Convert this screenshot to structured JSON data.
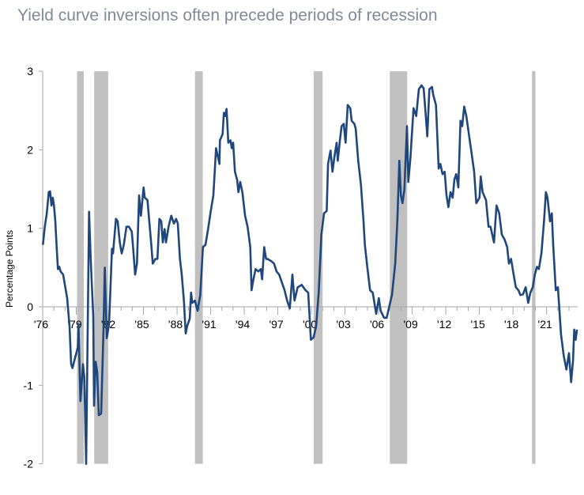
{
  "chart_data": {
    "type": "line",
    "title": "Yield curve inversions often precede periods of recession",
    "xlabel": "",
    "ylabel": "Percentage Points",
    "xlim": [
      1976,
      2023.8
    ],
    "ylim": [
      -2,
      3
    ],
    "y_ticks": [
      -2,
      -1,
      0,
      1,
      2,
      3
    ],
    "x_ticks": [
      {
        "year": 1976,
        "label": "'76"
      },
      {
        "year": 1979,
        "label": "'79"
      },
      {
        "year": 1982,
        "label": "'82"
      },
      {
        "year": 1985,
        "label": "'85"
      },
      {
        "year": 1988,
        "label": "'88"
      },
      {
        "year": 1991,
        "label": "'91"
      },
      {
        "year": 1994,
        "label": "'94"
      },
      {
        "year": 1997,
        "label": "'97"
      },
      {
        "year": 2000,
        "label": "'00"
      },
      {
        "year": 2003,
        "label": "'03"
      },
      {
        "year": 2006,
        "label": "'06"
      },
      {
        "year": 2009,
        "label": "'09"
      },
      {
        "year": 2012,
        "label": "'12"
      },
      {
        "year": 2015,
        "label": "'15"
      },
      {
        "year": 2018,
        "label": "'18"
      },
      {
        "year": 2021,
        "label": "'21"
      }
    ],
    "grid": false,
    "line_color": "#1f477d",
    "recession_color": "#c0c0c0",
    "axis_color": "#a6a6a6",
    "recessions": [
      [
        1979.07,
        1979.67
      ],
      [
        1980.6,
        1981.85
      ],
      [
        1989.6,
        1990.3
      ],
      [
        2000.2,
        2001.0
      ],
      [
        2007.0,
        2008.55
      ],
      [
        2019.7,
        2020.0
      ]
    ],
    "series": [
      {
        "points": [
          [
            1976.02,
            0.79
          ],
          [
            1976.19,
            1.02
          ],
          [
            1976.37,
            1.19
          ],
          [
            1976.54,
            1.46
          ],
          [
            1976.66,
            1.47
          ],
          [
            1976.78,
            1.29
          ],
          [
            1976.9,
            1.39
          ],
          [
            1977.01,
            1.29
          ],
          [
            1977.13,
            1.09
          ],
          [
            1977.25,
            0.76
          ],
          [
            1977.36,
            0.48
          ],
          [
            1977.48,
            0.51
          ],
          [
            1977.6,
            0.45
          ],
          [
            1977.83,
            0.41
          ],
          [
            1978.19,
            0.11
          ],
          [
            1978.4,
            -0.25
          ],
          [
            1978.54,
            -0.73
          ],
          [
            1978.66,
            -0.78
          ],
          [
            1978.89,
            -0.65
          ],
          [
            1979.13,
            -0.52
          ],
          [
            1979.2,
            -0.22
          ],
          [
            1979.37,
            -1.2
          ],
          [
            1979.6,
            -0.73
          ],
          [
            1979.72,
            -0.9
          ],
          [
            1979.88,
            -2.03
          ],
          [
            1980.14,
            1.21
          ],
          [
            1980.3,
            0.58
          ],
          [
            1980.52,
            -0.12
          ],
          [
            1980.59,
            -1.26
          ],
          [
            1980.73,
            -0.7
          ],
          [
            1980.87,
            -0.83
          ],
          [
            1981.01,
            -1.38
          ],
          [
            1981.22,
            -1.36
          ],
          [
            1981.43,
            -0.32
          ],
          [
            1981.55,
            0.5
          ],
          [
            1981.72,
            -0.4
          ],
          [
            1981.93,
            -0.22
          ],
          [
            1982.19,
            0.74
          ],
          [
            1982.28,
            0.68
          ],
          [
            1982.54,
            1.12
          ],
          [
            1982.7,
            1.09
          ],
          [
            1982.89,
            0.82
          ],
          [
            1983.06,
            0.68
          ],
          [
            1983.25,
            0.79
          ],
          [
            1983.48,
            1.02
          ],
          [
            1983.69,
            1.02
          ],
          [
            1983.95,
            0.96
          ],
          [
            1984.07,
            0.76
          ],
          [
            1984.26,
            0.41
          ],
          [
            1984.42,
            0.55
          ],
          [
            1984.61,
            1.42
          ],
          [
            1984.77,
            1.16
          ],
          [
            1985.01,
            1.52
          ],
          [
            1985.12,
            1.39
          ],
          [
            1985.36,
            1.36
          ],
          [
            1985.72,
            0.76
          ],
          [
            1985.83,
            0.55
          ],
          [
            1986.07,
            0.61
          ],
          [
            1986.25,
            0.61
          ],
          [
            1986.42,
            1.12
          ],
          [
            1986.59,
            1.09
          ],
          [
            1986.73,
            0.82
          ],
          [
            1986.89,
            0.99
          ],
          [
            1987.01,
            0.82
          ],
          [
            1987.24,
            1.02
          ],
          [
            1987.48,
            1.16
          ],
          [
            1987.72,
            1.06
          ],
          [
            1987.91,
            1.12
          ],
          [
            1988.07,
            1.06
          ],
          [
            1988.26,
            0.61
          ],
          [
            1988.42,
            0.41
          ],
          [
            1988.61,
            0.08
          ],
          [
            1988.77,
            -0.34
          ],
          [
            1988.89,
            -0.25
          ],
          [
            1989.13,
            -0.15
          ],
          [
            1989.25,
            0.18
          ],
          [
            1989.36,
            0.05
          ],
          [
            1989.6,
            0.08
          ],
          [
            1989.83,
            -0.05
          ],
          [
            1990.07,
            0.15
          ],
          [
            1990.31,
            0.76
          ],
          [
            1990.54,
            0.79
          ],
          [
            1990.77,
            0.99
          ],
          [
            1991.01,
            1.22
          ],
          [
            1991.24,
            1.42
          ],
          [
            1991.48,
            2.02
          ],
          [
            1991.79,
            1.82
          ],
          [
            1991.83,
            2.12
          ],
          [
            1992.07,
            2.2
          ],
          [
            1992.18,
            2.47
          ],
          [
            1992.3,
            2.43
          ],
          [
            1992.42,
            2.52
          ],
          [
            1992.58,
            2.09
          ],
          [
            1992.77,
            2.12
          ],
          [
            1992.89,
            2.02
          ],
          [
            1993.01,
            2.09
          ],
          [
            1993.17,
            1.72
          ],
          [
            1993.36,
            1.62
          ],
          [
            1993.48,
            1.46
          ],
          [
            1993.64,
            1.59
          ],
          [
            1993.83,
            1.46
          ],
          [
            1994.07,
            1.16
          ],
          [
            1994.3,
            1.02
          ],
          [
            1994.54,
            0.76
          ],
          [
            1994.65,
            0.21
          ],
          [
            1994.82,
            0.35
          ],
          [
            1995.01,
            0.48
          ],
          [
            1995.25,
            0.45
          ],
          [
            1995.48,
            0.48
          ],
          [
            1995.6,
            0.35
          ],
          [
            1995.78,
            0.76
          ],
          [
            1995.95,
            0.61
          ],
          [
            1996.06,
            0.61
          ],
          [
            1996.42,
            0.58
          ],
          [
            1996.66,
            0.55
          ],
          [
            1996.89,
            0.45
          ],
          [
            1997.12,
            0.41
          ],
          [
            1997.36,
            0.31
          ],
          [
            1997.6,
            0.21
          ],
          [
            1997.83,
            0.08
          ],
          [
            1998.07,
            -0.02
          ],
          [
            1998.3,
            0.41
          ],
          [
            1998.49,
            0.08
          ],
          [
            1998.77,
            0.25
          ],
          [
            1999.13,
            0.28
          ],
          [
            1999.48,
            0.21
          ],
          [
            1999.71,
            0.18
          ],
          [
            1999.95,
            -0.42
          ],
          [
            2000.19,
            -0.39
          ],
          [
            2000.42,
            -0.25
          ],
          [
            2000.65,
            0.18
          ],
          [
            2000.89,
            0.92
          ],
          [
            2001.12,
            1.19
          ],
          [
            2001.36,
            1.22
          ],
          [
            2001.48,
            1.82
          ],
          [
            2001.71,
            1.99
          ],
          [
            2001.88,
            1.72
          ],
          [
            2002.06,
            1.92
          ],
          [
            2002.25,
            2.09
          ],
          [
            2002.35,
            1.86
          ],
          [
            2002.54,
            2.12
          ],
          [
            2002.7,
            2.3
          ],
          [
            2002.89,
            2.33
          ],
          [
            2003.05,
            2.09
          ],
          [
            2003.24,
            2.57
          ],
          [
            2003.47,
            2.53
          ],
          [
            2003.59,
            2.37
          ],
          [
            2003.83,
            2.33
          ],
          [
            2003.95,
            2.27
          ],
          [
            2004.18,
            1.86
          ],
          [
            2004.42,
            1.56
          ],
          [
            2004.65,
            1.09
          ],
          [
            2004.77,
            0.79
          ],
          [
            2005.01,
            0.48
          ],
          [
            2005.24,
            0.21
          ],
          [
            2005.48,
            0.18
          ],
          [
            2005.78,
            -0.09
          ],
          [
            2006.02,
            0.11
          ],
          [
            2006.18,
            -0.05
          ],
          [
            2006.49,
            -0.14
          ],
          [
            2006.72,
            -0.14
          ],
          [
            2006.96,
            0.01
          ],
          [
            2007.19,
            0.15
          ],
          [
            2007.48,
            0.55
          ],
          [
            2007.67,
            1.09
          ],
          [
            2007.85,
            1.86
          ],
          [
            2007.99,
            1.42
          ],
          [
            2008.13,
            1.32
          ],
          [
            2008.3,
            1.49
          ],
          [
            2008.53,
            2.3
          ],
          [
            2008.65,
            1.59
          ],
          [
            2008.84,
            1.89
          ],
          [
            2009.12,
            2.53
          ],
          [
            2009.36,
            2.43
          ],
          [
            2009.59,
            2.77
          ],
          [
            2009.83,
            2.82
          ],
          [
            2010.02,
            2.78
          ],
          [
            2010.18,
            2.5
          ],
          [
            2010.35,
            2.17
          ],
          [
            2010.53,
            2.77
          ],
          [
            2010.77,
            2.8
          ],
          [
            2010.88,
            2.7
          ],
          [
            2011.12,
            2.57
          ],
          [
            2011.36,
            1.76
          ],
          [
            2011.52,
            1.82
          ],
          [
            2011.71,
            1.69
          ],
          [
            2011.9,
            1.72
          ],
          [
            2012.06,
            1.42
          ],
          [
            2012.23,
            1.27
          ],
          [
            2012.42,
            1.46
          ],
          [
            2012.61,
            1.39
          ],
          [
            2012.77,
            1.62
          ],
          [
            2012.93,
            1.69
          ],
          [
            2013.12,
            1.52
          ],
          [
            2013.31,
            2.37
          ],
          [
            2013.47,
            2.3
          ],
          [
            2013.64,
            2.55
          ],
          [
            2013.83,
            2.43
          ],
          [
            2014.06,
            2.2
          ],
          [
            2014.3,
            1.96
          ],
          [
            2014.53,
            1.72
          ],
          [
            2014.72,
            1.32
          ],
          [
            2015.01,
            1.39
          ],
          [
            2015.12,
            1.66
          ],
          [
            2015.29,
            1.46
          ],
          [
            2015.59,
            1.36
          ],
          [
            2015.82,
            1.02
          ],
          [
            2015.99,
            1.02
          ],
          [
            2016.3,
            0.82
          ],
          [
            2016.53,
            1.29
          ],
          [
            2016.77,
            1.19
          ],
          [
            2017.0,
            0.92
          ],
          [
            2017.24,
            0.86
          ],
          [
            2017.48,
            0.76
          ],
          [
            2017.64,
            0.55
          ],
          [
            2017.83,
            0.61
          ],
          [
            2018.01,
            0.45
          ],
          [
            2018.25,
            0.25
          ],
          [
            2018.49,
            0.21
          ],
          [
            2018.66,
            0.15
          ],
          [
            2018.89,
            0.16
          ],
          [
            2019.13,
            0.25
          ],
          [
            2019.36,
            0.05
          ],
          [
            2019.55,
            0.18
          ],
          [
            2019.77,
            0.25
          ],
          [
            2019.95,
            0.41
          ],
          [
            2020.14,
            0.51
          ],
          [
            2020.31,
            0.48
          ],
          [
            2020.54,
            0.68
          ],
          [
            2020.77,
            1.09
          ],
          [
            2020.94,
            1.46
          ],
          [
            2021.08,
            1.39
          ],
          [
            2021.31,
            1.09
          ],
          [
            2021.47,
            1.19
          ],
          [
            2021.59,
            0.79
          ],
          [
            2021.82,
            0.21
          ],
          [
            2022.01,
            0.25
          ],
          [
            2022.29,
            -0.35
          ],
          [
            2022.53,
            -0.62
          ],
          [
            2022.77,
            -0.8
          ],
          [
            2023.0,
            -0.59
          ],
          [
            2023.19,
            -0.96
          ],
          [
            2023.36,
            -0.69
          ],
          [
            2023.47,
            -0.29
          ],
          [
            2023.59,
            -0.42
          ],
          [
            2023.71,
            -0.29
          ]
        ]
      }
    ]
  }
}
